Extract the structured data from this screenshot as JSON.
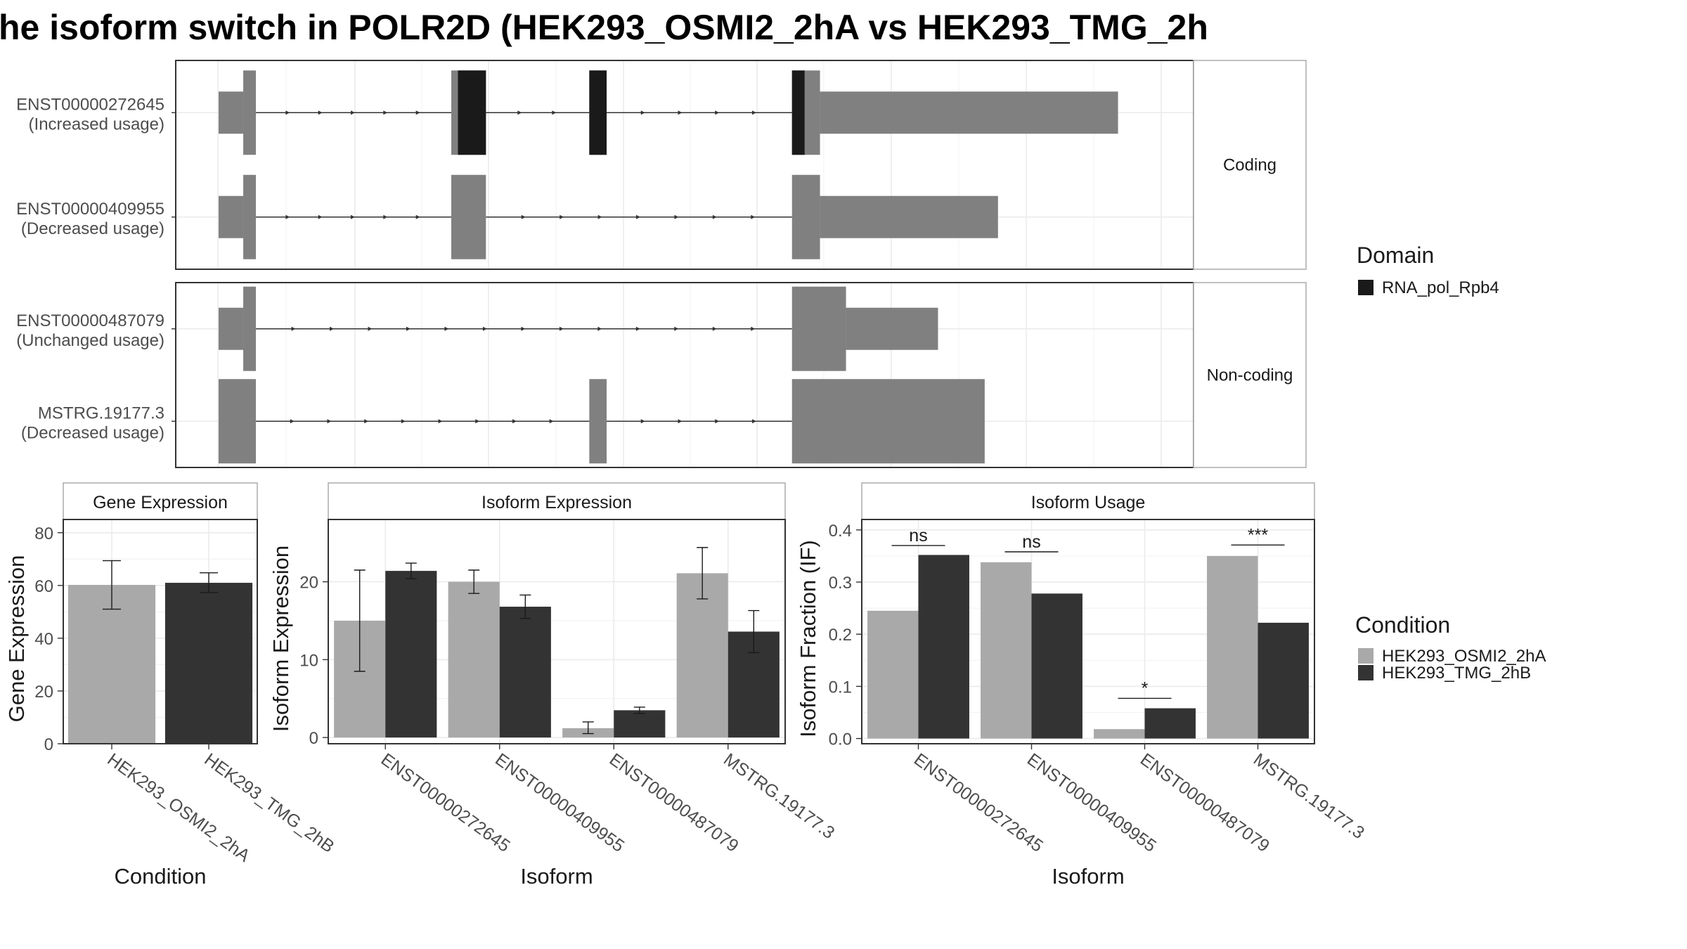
{
  "title": "he isoform switch in POLR2D (HEK293_OSMI2_2hA vs HEK293_TMG_2h",
  "colors": {
    "exon": "#808080",
    "domain": "#1a1a1a",
    "cond_a": "#a9a9a9",
    "cond_b": "#333333"
  },
  "structure": {
    "groups": [
      {
        "label": "Coding",
        "transcripts": [
          {
            "id": "ENST00000272645",
            "usage": "(Increased usage)",
            "exons": [
              [
                1,
                38
              ],
              [
                38,
                57
              ],
              [
                350,
                360
              ],
              [
                360,
                402
              ],
              [
                557,
                583
              ],
              [
                861,
                880
              ],
              [
                880,
                903
              ],
              [
                903,
                1350
              ]
            ],
            "thin": [
              [
                1,
                38
              ]
            ],
            "utr_end": [
              [
                903,
                1350
              ]
            ],
            "domains": [
              [
                360,
                402
              ],
              [
                557,
                583
              ],
              [
                861,
                880
              ]
            ]
          },
          {
            "id": "ENST00000409955",
            "usage": "(Decreased usage)",
            "exons": [
              [
                1,
                38
              ],
              [
                38,
                57
              ],
              [
                350,
                402
              ],
              [
                861,
                903
              ],
              [
                903,
                1170
              ]
            ],
            "thin": [
              [
                1,
                38
              ]
            ],
            "utr_end": [
              [
                903,
                1170
              ]
            ],
            "domains": []
          }
        ]
      },
      {
        "label": "Non-coding",
        "transcripts": [
          {
            "id": "ENST00000487079",
            "usage": "(Unchanged usage)",
            "exons": [
              [
                1,
                38
              ],
              [
                38,
                57
              ],
              [
                861,
                942
              ],
              [
                942,
                1080
              ]
            ],
            "thin": [
              [
                1,
                38
              ],
              [
                942,
                1080
              ]
            ],
            "utr_end": [],
            "domains": []
          },
          {
            "id": "MSTRG.19177.3",
            "usage": "(Decreased usage)",
            "exons": [
              [
                1,
                57
              ],
              [
                557,
                583
              ],
              [
                861,
                1150
              ]
            ],
            "thin": [],
            "utr_end": [],
            "domains": []
          }
        ]
      }
    ],
    "xlim": [
      0,
      1400
    ]
  },
  "legend_domain": {
    "title": "Domain",
    "entry": "RNA_pol_Rpb4"
  },
  "legend_condition": {
    "title": "Condition",
    "entries": [
      "HEK293_OSMI2_2hA",
      "HEK293_TMG_2hB"
    ]
  },
  "chart_data": [
    {
      "type": "bar",
      "strip": "Gene Expression",
      "xlabel": "Condition",
      "ylabel": "Gene Expression",
      "ylim": [
        0,
        85
      ],
      "yticks": [
        0,
        20,
        40,
        60,
        80
      ],
      "categories": [
        "HEK293_OSMI2_2hA",
        "HEK293_TMG_2hB"
      ],
      "values": [
        60.2,
        61.0
      ],
      "err_low": [
        51.0,
        57.3
      ],
      "err_high": [
        69.4,
        64.8
      ]
    },
    {
      "type": "bar",
      "strip": "Isoform Expression",
      "xlabel": "Isoform",
      "ylabel": "Isoform Expression",
      "ylim": [
        -0.8,
        28
      ],
      "yticks": [
        0,
        10,
        20
      ],
      "categories": [
        "ENST00000272645",
        "ENST00000409955",
        "ENST00000487079",
        "MSTRG.19177.3"
      ],
      "series": [
        {
          "name": "HEK293_OSMI2_2hA",
          "values": [
            15.0,
            20.0,
            1.2,
            21.1
          ],
          "err_low": [
            8.5,
            18.5,
            0.5,
            17.8
          ],
          "err_high": [
            21.5,
            21.5,
            2.0,
            24.4
          ]
        },
        {
          "name": "HEK293_TMG_2hB",
          "values": [
            21.4,
            16.8,
            3.5,
            13.6
          ],
          "err_low": [
            20.4,
            15.3,
            3.1,
            10.9
          ],
          "err_high": [
            22.4,
            18.3,
            3.9,
            16.3
          ]
        }
      ]
    },
    {
      "type": "bar",
      "strip": "Isoform Usage",
      "xlabel": "Isoform",
      "ylabel": "Isoform Fraction (IF)",
      "ylim": [
        -0.01,
        0.42
      ],
      "yticks": [
        0.0,
        0.1,
        0.2,
        0.3,
        0.4
      ],
      "categories": [
        "ENST00000272645",
        "ENST00000409955",
        "ENST00000487079",
        "MSTRG.19177.3"
      ],
      "series": [
        {
          "name": "HEK293_OSMI2_2hA",
          "values": [
            0.245,
            0.338,
            0.018,
            0.35
          ]
        },
        {
          "name": "HEK293_TMG_2hB",
          "values": [
            0.352,
            0.278,
            0.058,
            0.222
          ]
        }
      ],
      "significance": [
        "ns",
        "ns",
        "*",
        "***"
      ],
      "significance_y": [
        0.37,
        0.358,
        0.077,
        0.371
      ]
    }
  ]
}
